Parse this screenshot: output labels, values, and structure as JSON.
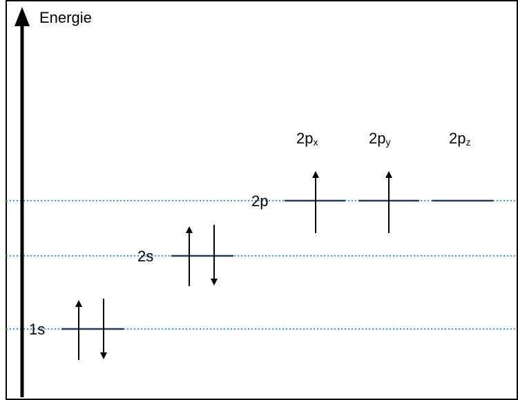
{
  "axis": {
    "label": "Energie"
  },
  "levels": {
    "s1": {
      "label": "1s"
    },
    "s2": {
      "label": "2s"
    },
    "p2": {
      "label": "2p"
    }
  },
  "orbitals": [
    {
      "base": "2p",
      "sub": "x"
    },
    {
      "base": "2p",
      "sub": "y"
    },
    {
      "base": "2p",
      "sub": "z"
    }
  ],
  "colors": {
    "guide": "#2aa3d6",
    "level": "#1f3b5e",
    "ink": "#000000"
  }
}
